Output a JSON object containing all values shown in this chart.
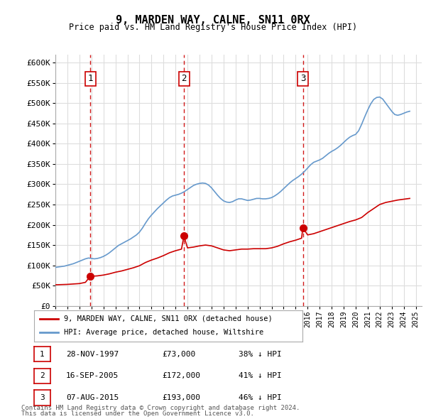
{
  "title": "9, MARDEN WAY, CALNE, SN11 0RX",
  "subtitle": "Price paid vs. HM Land Registry's House Price Index (HPI)",
  "ylabel_ticks": [
    "£0",
    "£50K",
    "£100K",
    "£150K",
    "£200K",
    "£250K",
    "£300K",
    "£350K",
    "£400K",
    "£450K",
    "£500K",
    "£550K",
    "£600K"
  ],
  "ylim": [
    0,
    620000
  ],
  "yticks": [
    0,
    50000,
    100000,
    150000,
    200000,
    250000,
    300000,
    350000,
    400000,
    450000,
    500000,
    550000,
    600000
  ],
  "purchases": [
    {
      "date": "28-NOV-1997",
      "price": 73000,
      "label": "1",
      "year": 1997.9
    },
    {
      "date": "16-SEP-2005",
      "price": 172000,
      "label": "2",
      "year": 2005.7
    },
    {
      "date": "07-AUG-2015",
      "price": 193000,
      "label": "3",
      "year": 2015.6
    }
  ],
  "purchase_labels": [
    {
      "num": "1",
      "date": "28-NOV-1997",
      "price": "£73,000",
      "pct": "38% ↓ HPI"
    },
    {
      "num": "2",
      "date": "16-SEP-2005",
      "price": "£172,000",
      "pct": "41% ↓ HPI"
    },
    {
      "num": "3",
      "date": "07-AUG-2015",
      "price": "£193,000",
      "pct": "46% ↓ HPI"
    }
  ],
  "legend_property": "9, MARDEN WAY, CALNE, SN11 0RX (detached house)",
  "legend_hpi": "HPI: Average price, detached house, Wiltshire",
  "footer1": "Contains HM Land Registry data © Crown copyright and database right 2024.",
  "footer2": "This data is licensed under the Open Government Licence v3.0.",
  "property_color": "#cc0000",
  "hpi_color": "#6699cc",
  "vline_color": "#cc0000",
  "background_color": "#ffffff",
  "grid_color": "#dddddd",
  "hpi_data_years": [
    1995.0,
    1995.25,
    1995.5,
    1995.75,
    1996.0,
    1996.25,
    1996.5,
    1996.75,
    1997.0,
    1997.25,
    1997.5,
    1997.75,
    1998.0,
    1998.25,
    1998.5,
    1998.75,
    1999.0,
    1999.25,
    1999.5,
    1999.75,
    2000.0,
    2000.25,
    2000.5,
    2000.75,
    2001.0,
    2001.25,
    2001.5,
    2001.75,
    2002.0,
    2002.25,
    2002.5,
    2002.75,
    2003.0,
    2003.25,
    2003.5,
    2003.75,
    2004.0,
    2004.25,
    2004.5,
    2004.75,
    2005.0,
    2005.25,
    2005.5,
    2005.75,
    2006.0,
    2006.25,
    2006.5,
    2006.75,
    2007.0,
    2007.25,
    2007.5,
    2007.75,
    2008.0,
    2008.25,
    2008.5,
    2008.75,
    2009.0,
    2009.25,
    2009.5,
    2009.75,
    2010.0,
    2010.25,
    2010.5,
    2010.75,
    2011.0,
    2011.25,
    2011.5,
    2011.75,
    2012.0,
    2012.25,
    2012.5,
    2012.75,
    2013.0,
    2013.25,
    2013.5,
    2013.75,
    2014.0,
    2014.25,
    2014.5,
    2014.75,
    2015.0,
    2015.25,
    2015.5,
    2015.75,
    2016.0,
    2016.25,
    2016.5,
    2016.75,
    2017.0,
    2017.25,
    2017.5,
    2017.75,
    2018.0,
    2018.25,
    2018.5,
    2018.75,
    2019.0,
    2019.25,
    2019.5,
    2019.75,
    2020.0,
    2020.25,
    2020.5,
    2020.75,
    2021.0,
    2021.25,
    2021.5,
    2021.75,
    2022.0,
    2022.25,
    2022.5,
    2022.75,
    2023.0,
    2023.25,
    2023.5,
    2023.75,
    2024.0,
    2024.25,
    2024.5
  ],
  "hpi_data_values": [
    95000,
    96000,
    97000,
    98000,
    100000,
    102000,
    104000,
    107000,
    110000,
    113000,
    116000,
    118000,
    117000,
    116000,
    117000,
    119000,
    122000,
    126000,
    131000,
    137000,
    143000,
    149000,
    153000,
    157000,
    161000,
    165000,
    170000,
    175000,
    182000,
    192000,
    204000,
    215000,
    224000,
    232000,
    240000,
    247000,
    254000,
    261000,
    267000,
    271000,
    273000,
    275000,
    278000,
    282000,
    287000,
    292000,
    297000,
    300000,
    302000,
    303000,
    302000,
    298000,
    291000,
    282000,
    273000,
    265000,
    259000,
    256000,
    255000,
    257000,
    261000,
    264000,
    264000,
    262000,
    260000,
    261000,
    263000,
    265000,
    265000,
    264000,
    264000,
    265000,
    267000,
    271000,
    276000,
    282000,
    289000,
    296000,
    303000,
    309000,
    314000,
    319000,
    325000,
    332000,
    340000,
    348000,
    354000,
    357000,
    360000,
    364000,
    370000,
    376000,
    381000,
    385000,
    390000,
    396000,
    403000,
    410000,
    416000,
    420000,
    423000,
    432000,
    448000,
    466000,
    483000,
    498000,
    509000,
    514000,
    515000,
    510000,
    500000,
    490000,
    480000,
    472000,
    470000,
    472000,
    475000,
    478000,
    480000
  ],
  "prop_data_years": [
    1995.0,
    1995.5,
    1996.0,
    1996.5,
    1997.0,
    1997.5,
    1997.9,
    1998.0,
    1998.5,
    1999.0,
    1999.5,
    2000.0,
    2000.5,
    2001.0,
    2001.5,
    2002.0,
    2002.5,
    2003.0,
    2003.5,
    2004.0,
    2004.5,
    2005.0,
    2005.5,
    2005.7,
    2006.0,
    2006.5,
    2007.0,
    2007.5,
    2008.0,
    2008.5,
    2009.0,
    2009.5,
    2010.0,
    2010.5,
    2011.0,
    2011.5,
    2012.0,
    2012.5,
    2013.0,
    2013.5,
    2014.0,
    2014.5,
    2015.0,
    2015.5,
    2015.6,
    2016.0,
    2016.5,
    2017.0,
    2017.5,
    2018.0,
    2018.5,
    2019.0,
    2019.5,
    2020.0,
    2020.5,
    2021.0,
    2021.5,
    2022.0,
    2022.5,
    2023.0,
    2023.5,
    2024.0,
    2024.5
  ],
  "prop_data_values": [
    52000,
    52500,
    53000,
    54000,
    55000,
    58000,
    73000,
    73000,
    74000,
    76000,
    79000,
    83000,
    86000,
    90000,
    94000,
    99000,
    107000,
    113000,
    118000,
    124000,
    131000,
    136000,
    140000,
    172000,
    143000,
    145000,
    148000,
    150000,
    148000,
    143000,
    138000,
    136000,
    138000,
    140000,
    140000,
    141000,
    141000,
    141000,
    143000,
    147000,
    153000,
    158000,
    162000,
    167000,
    193000,
    175000,
    178000,
    183000,
    188000,
    193000,
    198000,
    203000,
    208000,
    212000,
    218000,
    230000,
    240000,
    250000,
    255000,
    258000,
    261000,
    263000,
    265000
  ]
}
